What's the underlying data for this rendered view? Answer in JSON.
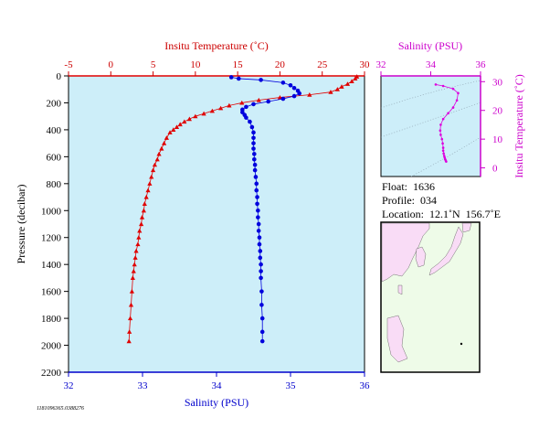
{
  "chart_data": [
    {
      "type": "line",
      "title": "",
      "top_axis": {
        "label": "Insitu Temperature (˚C)",
        "ticks": [
          -5,
          0,
          5,
          10,
          15,
          20,
          25,
          30
        ],
        "range": [
          -5,
          30
        ],
        "color": "#cc0000"
      },
      "bottom_axis": {
        "label": "Salinity (PSU)",
        "ticks": [
          32,
          33,
          34,
          35,
          36
        ],
        "range": [
          32,
          36
        ],
        "color": "#0000cc"
      },
      "left_axis": {
        "label": "Pressure (decibar)",
        "ticks": [
          0,
          200,
          400,
          600,
          800,
          1000,
          1200,
          1400,
          1600,
          1800,
          2000,
          2200
        ],
        "range": [
          0,
          2200
        ],
        "inverted": true
      },
      "series": [
        {
          "quantity": "Insitu Temperature",
          "marker": "triangle",
          "color": "#e00000",
          "points": [
            [
              29.1,
              5
            ],
            [
              28.9,
              20
            ],
            [
              28.5,
              40
            ],
            [
              28.0,
              60
            ],
            [
              27.3,
              80
            ],
            [
              26.8,
              100
            ],
            [
              26.0,
              120
            ],
            [
              23.5,
              140
            ],
            [
              20.0,
              160
            ],
            [
              17.5,
              180
            ],
            [
              15.5,
              200
            ],
            [
              14.0,
              220
            ],
            [
              13.0,
              240
            ],
            [
              12.0,
              260
            ],
            [
              11.0,
              280
            ],
            [
              10.0,
              300
            ],
            [
              9.3,
              320
            ],
            [
              8.7,
              340
            ],
            [
              8.2,
              360
            ],
            [
              7.8,
              380
            ],
            [
              7.4,
              400
            ],
            [
              7.0,
              420
            ],
            [
              6.6,
              460
            ],
            [
              6.3,
              500
            ],
            [
              6.0,
              540
            ],
            [
              5.7,
              580
            ],
            [
              5.5,
              620
            ],
            [
              5.2,
              660
            ],
            [
              5.0,
              700
            ],
            [
              4.8,
              750
            ],
            [
              4.6,
              800
            ],
            [
              4.4,
              850
            ],
            [
              4.2,
              900
            ],
            [
              4.0,
              950
            ],
            [
              3.9,
              1000
            ],
            [
              3.7,
              1050
            ],
            [
              3.6,
              1100
            ],
            [
              3.4,
              1150
            ],
            [
              3.3,
              1200
            ],
            [
              3.2,
              1250
            ],
            [
              3.0,
              1300
            ],
            [
              2.9,
              1350
            ],
            [
              2.8,
              1400
            ],
            [
              2.7,
              1450
            ],
            [
              2.6,
              1500
            ],
            [
              2.5,
              1600
            ],
            [
              2.4,
              1700
            ],
            [
              2.3,
              1800
            ],
            [
              2.2,
              1900
            ],
            [
              2.15,
              1970
            ]
          ]
        },
        {
          "quantity": "Salinity",
          "marker": "circle",
          "color": "#0000dd",
          "points": [
            [
              34.2,
              10
            ],
            [
              34.3,
              20
            ],
            [
              34.6,
              30
            ],
            [
              34.9,
              50
            ],
            [
              35.0,
              70
            ],
            [
              35.05,
              90
            ],
            [
              35.1,
              110
            ],
            [
              35.12,
              130
            ],
            [
              35.05,
              150
            ],
            [
              34.9,
              170
            ],
            [
              34.7,
              190
            ],
            [
              34.5,
              210
            ],
            [
              34.4,
              230
            ],
            [
              34.35,
              250
            ],
            [
              34.35,
              270
            ],
            [
              34.38,
              290
            ],
            [
              34.4,
              310
            ],
            [
              34.45,
              340
            ],
            [
              34.48,
              380
            ],
            [
              34.5,
              420
            ],
            [
              34.5,
              460
            ],
            [
              34.5,
              500
            ],
            [
              34.5,
              540
            ],
            [
              34.51,
              580
            ],
            [
              34.51,
              620
            ],
            [
              34.52,
              660
            ],
            [
              34.52,
              700
            ],
            [
              34.53,
              750
            ],
            [
              34.54,
              800
            ],
            [
              34.54,
              850
            ],
            [
              34.55,
              900
            ],
            [
              34.55,
              950
            ],
            [
              34.56,
              1000
            ],
            [
              34.56,
              1050
            ],
            [
              34.57,
              1100
            ],
            [
              34.57,
              1150
            ],
            [
              34.58,
              1200
            ],
            [
              34.58,
              1250
            ],
            [
              34.59,
              1300
            ],
            [
              34.59,
              1350
            ],
            [
              34.6,
              1400
            ],
            [
              34.6,
              1450
            ],
            [
              34.6,
              1500
            ],
            [
              34.61,
              1600
            ],
            [
              34.61,
              1700
            ],
            [
              34.62,
              1800
            ],
            [
              34.62,
              1900
            ],
            [
              34.62,
              1970
            ]
          ]
        }
      ]
    },
    {
      "type": "scatter",
      "title": "",
      "top_axis": {
        "label": "Salinity (PSU)",
        "ticks": [
          32,
          34,
          36
        ],
        "range": [
          32,
          36
        ],
        "color": "#cc00cc"
      },
      "right_axis": {
        "label": "Insitu Temperature (˚C)",
        "ticks": [
          0,
          10,
          20,
          30
        ],
        "range": [
          -3,
          32
        ],
        "color": "#cc00cc"
      },
      "series": [
        {
          "quantity": "T-S",
          "marker": "dot",
          "color": "#dd00dd",
          "points": [
            [
              34.2,
              29.0
            ],
            [
              34.5,
              28.5
            ],
            [
              34.9,
              27.5
            ],
            [
              35.1,
              26.0
            ],
            [
              35.05,
              23.5
            ],
            [
              34.9,
              21.0
            ],
            [
              34.7,
              19.0
            ],
            [
              34.5,
              17.0
            ],
            [
              34.4,
              15.0
            ],
            [
              34.38,
              13.0
            ],
            [
              34.4,
              11.5
            ],
            [
              34.45,
              10.0
            ],
            [
              34.48,
              8.5
            ],
            [
              34.5,
              7.0
            ],
            [
              34.5,
              6.0
            ],
            [
              34.52,
              5.0
            ],
            [
              34.54,
              4.2
            ],
            [
              34.56,
              3.6
            ],
            [
              34.58,
              3.0
            ],
            [
              34.6,
              2.6
            ],
            [
              34.62,
              2.2
            ]
          ]
        }
      ]
    }
  ],
  "info": {
    "float": "Float:  1636",
    "profile": "Profile:  034",
    "location": "Location:  12.1˚N  156.7˚E"
  },
  "footer": "1181096365.0388276"
}
